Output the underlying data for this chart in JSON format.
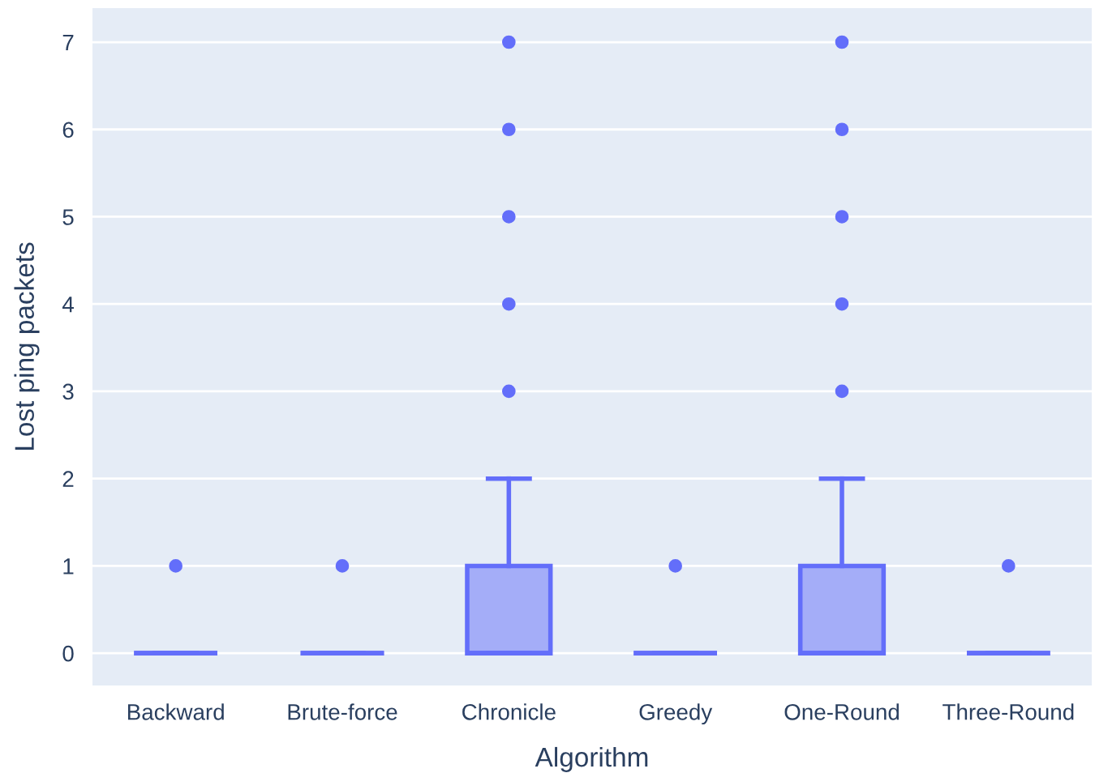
{
  "chart_data": {
    "type": "box",
    "xlabel": "Algorithm",
    "ylabel": "Lost ping packets",
    "categories": [
      "Backward",
      "Brute-force",
      "Chronicle",
      "Greedy",
      "One-Round",
      "Three-Round"
    ],
    "color": "#636efa",
    "boxes": [
      {
        "low": 0,
        "q1": 0,
        "median": 0,
        "q3": 0,
        "high": 0,
        "outliers": [
          1
        ]
      },
      {
        "low": 0,
        "q1": 0,
        "median": 0,
        "q3": 0,
        "high": 0,
        "outliers": [
          1
        ]
      },
      {
        "low": 0,
        "q1": 0,
        "median": 0,
        "q3": 1,
        "high": 2,
        "outliers": [
          3,
          4,
          5,
          6,
          7
        ]
      },
      {
        "low": 0,
        "q1": 0,
        "median": 0,
        "q3": 0,
        "high": 0,
        "outliers": [
          1
        ]
      },
      {
        "low": 0,
        "q1": 0,
        "median": 0,
        "q3": 1,
        "high": 2,
        "outliers": [
          3,
          4,
          5,
          6,
          7
        ]
      },
      {
        "low": 0,
        "q1": 0,
        "median": 0,
        "q3": 0,
        "high": 0,
        "outliers": [
          1
        ]
      }
    ],
    "ylim": [
      -0.37,
      7.39
    ],
    "yticks": [
      0,
      1,
      2,
      3,
      4,
      5,
      6,
      7
    ],
    "grid": "y",
    "legend": false
  }
}
